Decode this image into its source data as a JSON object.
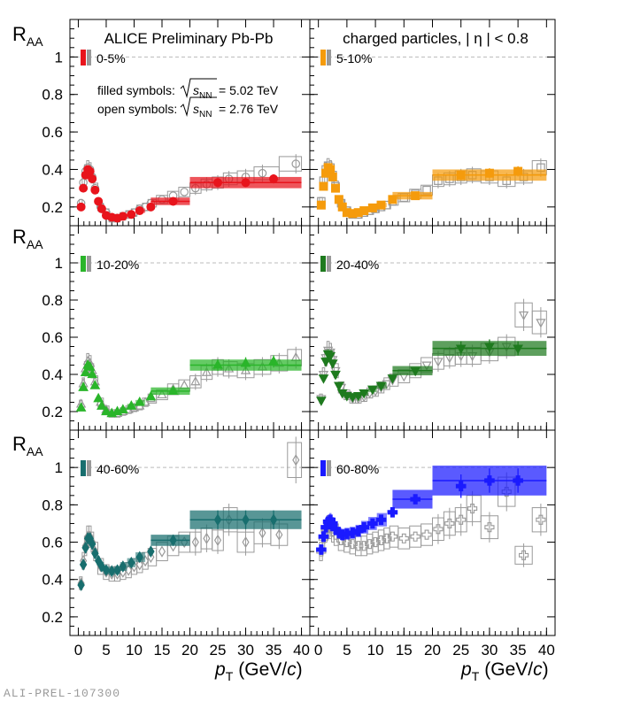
{
  "header": {
    "left_title": "ALICE Preliminary Pb-Pb",
    "right_title": "charged particles, | η | < 0.8"
  },
  "legend": {
    "filled_label": "filled symbols:",
    "open_label": "open symbols:",
    "sqrt_symbol": "s",
    "sqrt_sub": "NN",
    "energy_502": "= 5.02 TeV",
    "energy_276": "= 2.76 TeV"
  },
  "axes": {
    "y_label_main": "R",
    "y_label_sub": "AA",
    "x_label_main": "p",
    "x_label_sub": "T",
    "x_label_unit_open": "(GeV/",
    "x_label_unit_c": "c",
    "x_label_unit_close": ")",
    "x_ticks": [
      0,
      5,
      10,
      15,
      20,
      25,
      30,
      35,
      40
    ],
    "y_ticks": [
      0.2,
      0.4,
      0.6,
      0.8,
      1
    ]
  },
  "watermark": "ALI-PREL-107300",
  "chart_data": [
    {
      "type": "scatter",
      "panel": "top-left",
      "centrality": "0-5%",
      "color": "#e8141c",
      "marker": "circle",
      "xlim": [
        -1.5,
        41.5
      ],
      "ylim": [
        0.1,
        1.2
      ],
      "points_502": [
        [
          0.5,
          0.2
        ],
        [
          0.9,
          0.3
        ],
        [
          1.3,
          0.37
        ],
        [
          1.7,
          0.4
        ],
        [
          2.1,
          0.39
        ],
        [
          2.5,
          0.35
        ],
        [
          3,
          0.29
        ],
        [
          3.6,
          0.23
        ],
        [
          4.2,
          0.19
        ],
        [
          5,
          0.155
        ],
        [
          6,
          0.145
        ],
        [
          7,
          0.14
        ],
        [
          8,
          0.15
        ],
        [
          9.5,
          0.16
        ],
        [
          11,
          0.18
        ],
        [
          13,
          0.2
        ],
        [
          17,
          0.23
        ],
        [
          25,
          0.33
        ],
        [
          30,
          0.33
        ],
        [
          35,
          0.35
        ]
      ],
      "points_276": [
        [
          0.5,
          0.22
        ],
        [
          0.9,
          0.33
        ],
        [
          1.3,
          0.39
        ],
        [
          1.7,
          0.41
        ],
        [
          2.1,
          0.4
        ],
        [
          2.5,
          0.36
        ],
        [
          3,
          0.3
        ],
        [
          4,
          0.2
        ],
        [
          5,
          0.17
        ],
        [
          6,
          0.14
        ],
        [
          7,
          0.14
        ],
        [
          8,
          0.15
        ],
        [
          9,
          0.16
        ],
        [
          10,
          0.17
        ],
        [
          11,
          0.19
        ],
        [
          12,
          0.2
        ],
        [
          13,
          0.22
        ],
        [
          15,
          0.24
        ],
        [
          17,
          0.26
        ],
        [
          19,
          0.28
        ],
        [
          21,
          0.3
        ],
        [
          23,
          0.32
        ],
        [
          25,
          0.33
        ],
        [
          27,
          0.35
        ],
        [
          30,
          0.36
        ],
        [
          33,
          0.38
        ],
        [
          39,
          0.43
        ]
      ],
      "sys_boxes_502": [
        [
          13,
          20,
          0.23,
          0.02
        ],
        [
          20,
          40,
          0.33,
          0.03
        ]
      ]
    },
    {
      "type": "scatter",
      "panel": "top-right",
      "centrality": "5-10%",
      "color": "#f59b0c",
      "marker": "square",
      "xlim": [
        -1.5,
        41.5
      ],
      "ylim": [
        0.1,
        1.2
      ],
      "points_502": [
        [
          0.5,
          0.21
        ],
        [
          0.9,
          0.31
        ],
        [
          1.3,
          0.38
        ],
        [
          1.7,
          0.41
        ],
        [
          2.1,
          0.4
        ],
        [
          2.5,
          0.36
        ],
        [
          3,
          0.3
        ],
        [
          3.6,
          0.24
        ],
        [
          4.2,
          0.2
        ],
        [
          5,
          0.17
        ],
        [
          6,
          0.165
        ],
        [
          7,
          0.17
        ],
        [
          8,
          0.18
        ],
        [
          9.5,
          0.195
        ],
        [
          11,
          0.21
        ],
        [
          13,
          0.24
        ],
        [
          17,
          0.26
        ],
        [
          25,
          0.37
        ],
        [
          30,
          0.38
        ],
        [
          35,
          0.39
        ]
      ],
      "points_276": [
        [
          0.5,
          0.23
        ],
        [
          0.9,
          0.34
        ],
        [
          1.3,
          0.4
        ],
        [
          1.7,
          0.42
        ],
        [
          2.1,
          0.41
        ],
        [
          2.5,
          0.37
        ],
        [
          3,
          0.31
        ],
        [
          4,
          0.22
        ],
        [
          5,
          0.18
        ],
        [
          6,
          0.16
        ],
        [
          7,
          0.16
        ],
        [
          8,
          0.17
        ],
        [
          9,
          0.18
        ],
        [
          10,
          0.19
        ],
        [
          11,
          0.2
        ],
        [
          12,
          0.21
        ],
        [
          13,
          0.23
        ],
        [
          15,
          0.25
        ],
        [
          17,
          0.27
        ],
        [
          19,
          0.29
        ],
        [
          21,
          0.34
        ],
        [
          23,
          0.35
        ],
        [
          25,
          0.36
        ],
        [
          27,
          0.37
        ],
        [
          30,
          0.36
        ],
        [
          33,
          0.34
        ],
        [
          36,
          0.36
        ],
        [
          39,
          0.41
        ]
      ],
      "sys_boxes_502": [
        [
          13,
          20,
          0.26,
          0.02
        ],
        [
          20,
          40,
          0.37,
          0.03
        ]
      ]
    },
    {
      "type": "scatter",
      "panel": "middle-left",
      "centrality": "10-20%",
      "color": "#2ab52a",
      "marker": "triangle-up",
      "xlim": [
        -1.5,
        41.5
      ],
      "ylim": [
        0.1,
        1.2
      ],
      "points_502": [
        [
          0.5,
          0.22
        ],
        [
          0.9,
          0.33
        ],
        [
          1.3,
          0.41
        ],
        [
          1.7,
          0.45
        ],
        [
          2.1,
          0.44
        ],
        [
          2.5,
          0.4
        ],
        [
          3,
          0.34
        ],
        [
          3.6,
          0.27
        ],
        [
          4.2,
          0.23
        ],
        [
          5,
          0.2
        ],
        [
          6,
          0.19
        ],
        [
          7,
          0.2
        ],
        [
          8,
          0.21
        ],
        [
          9.5,
          0.23
        ],
        [
          11,
          0.25
        ],
        [
          13,
          0.28
        ],
        [
          17,
          0.31
        ],
        [
          25,
          0.45
        ],
        [
          30,
          0.46
        ],
        [
          35,
          0.47
        ]
      ],
      "points_276": [
        [
          0.5,
          0.24
        ],
        [
          0.9,
          0.35
        ],
        [
          1.3,
          0.43
        ],
        [
          1.7,
          0.47
        ],
        [
          2.1,
          0.46
        ],
        [
          2.5,
          0.42
        ],
        [
          3,
          0.36
        ],
        [
          4,
          0.25
        ],
        [
          5,
          0.21
        ],
        [
          6,
          0.19
        ],
        [
          7,
          0.19
        ],
        [
          8,
          0.2
        ],
        [
          9,
          0.21
        ],
        [
          10,
          0.22
        ],
        [
          11,
          0.23
        ],
        [
          12,
          0.25
        ],
        [
          13,
          0.27
        ],
        [
          15,
          0.29
        ],
        [
          17,
          0.32
        ],
        [
          19,
          0.34
        ],
        [
          21,
          0.36
        ],
        [
          23,
          0.41
        ],
        [
          25,
          0.44
        ],
        [
          27,
          0.43
        ],
        [
          30,
          0.42
        ],
        [
          33,
          0.44
        ],
        [
          36,
          0.46
        ],
        [
          39,
          0.49
        ]
      ],
      "sys_boxes_502": [
        [
          13,
          20,
          0.31,
          0.02
        ],
        [
          20,
          40,
          0.45,
          0.03
        ]
      ]
    },
    {
      "type": "scatter",
      "panel": "middle-right",
      "centrality": "20-40%",
      "color": "#1e7a1e",
      "marker": "triangle-down",
      "xlim": [
        -1.5,
        41.5
      ],
      "ylim": [
        0.1,
        1.2
      ],
      "points_502": [
        [
          0.5,
          0.26
        ],
        [
          0.9,
          0.38
        ],
        [
          1.3,
          0.47
        ],
        [
          1.7,
          0.51
        ],
        [
          2.1,
          0.5
        ],
        [
          2.5,
          0.46
        ],
        [
          3,
          0.4
        ],
        [
          3.6,
          0.34
        ],
        [
          4.2,
          0.3
        ],
        [
          5,
          0.285
        ],
        [
          6,
          0.28
        ],
        [
          7,
          0.285
        ],
        [
          8,
          0.3
        ],
        [
          9.5,
          0.32
        ],
        [
          11,
          0.34
        ],
        [
          13,
          0.38
        ],
        [
          17,
          0.42
        ],
        [
          25,
          0.54
        ],
        [
          30,
          0.55
        ],
        [
          35,
          0.54
        ]
      ],
      "points_276": [
        [
          0.5,
          0.27
        ],
        [
          0.9,
          0.4
        ],
        [
          1.3,
          0.49
        ],
        [
          1.7,
          0.53
        ],
        [
          2.1,
          0.52
        ],
        [
          2.5,
          0.48
        ],
        [
          3,
          0.42
        ],
        [
          4,
          0.33
        ],
        [
          5,
          0.29
        ],
        [
          6,
          0.27
        ],
        [
          7,
          0.27
        ],
        [
          8,
          0.28
        ],
        [
          9,
          0.3
        ],
        [
          10,
          0.31
        ],
        [
          11,
          0.33
        ],
        [
          12,
          0.35
        ],
        [
          13,
          0.37
        ],
        [
          15,
          0.39
        ],
        [
          17,
          0.42
        ],
        [
          19,
          0.45
        ],
        [
          21,
          0.47
        ],
        [
          23,
          0.49
        ],
        [
          25,
          0.5
        ],
        [
          27,
          0.5
        ],
        [
          30,
          0.52
        ],
        [
          33,
          0.55
        ],
        [
          36,
          0.72
        ],
        [
          39,
          0.68
        ]
      ],
      "sys_boxes_502": [
        [
          13,
          20,
          0.42,
          0.025
        ],
        [
          20,
          40,
          0.54,
          0.04
        ]
      ]
    },
    {
      "type": "scatter",
      "panel": "bottom-left",
      "centrality": "40-60%",
      "color": "#186e6e",
      "marker": "diamond",
      "xlim": [
        -1.5,
        41.5
      ],
      "ylim": [
        0.1,
        1.2
      ],
      "points_502": [
        [
          0.5,
          0.37
        ],
        [
          0.9,
          0.48
        ],
        [
          1.3,
          0.57
        ],
        [
          1.7,
          0.62
        ],
        [
          2.1,
          0.62
        ],
        [
          2.5,
          0.59
        ],
        [
          3,
          0.54
        ],
        [
          3.6,
          0.5
        ],
        [
          4.2,
          0.47
        ],
        [
          5,
          0.45
        ],
        [
          6,
          0.445
        ],
        [
          7,
          0.45
        ],
        [
          8,
          0.47
        ],
        [
          9.5,
          0.49
        ],
        [
          11,
          0.52
        ],
        [
          13,
          0.55
        ],
        [
          17,
          0.61
        ],
        [
          25,
          0.72
        ],
        [
          30,
          0.72
        ],
        [
          35,
          0.72
        ]
      ],
      "points_276": [
        [
          0.5,
          0.38
        ],
        [
          0.9,
          0.5
        ],
        [
          1.3,
          0.58
        ],
        [
          1.7,
          0.63
        ],
        [
          2.1,
          0.63
        ],
        [
          2.5,
          0.6
        ],
        [
          3,
          0.55
        ],
        [
          4,
          0.47
        ],
        [
          5,
          0.44
        ],
        [
          6,
          0.43
        ],
        [
          7,
          0.43
        ],
        [
          8,
          0.44
        ],
        [
          9,
          0.45
        ],
        [
          10,
          0.47
        ],
        [
          11,
          0.48
        ],
        [
          12,
          0.5
        ],
        [
          13,
          0.52
        ],
        [
          15,
          0.55
        ],
        [
          17,
          0.58
        ],
        [
          19,
          0.6
        ],
        [
          21,
          0.6
        ],
        [
          23,
          0.62
        ],
        [
          25,
          0.61
        ],
        [
          27,
          0.72
        ],
        [
          30,
          0.6
        ],
        [
          33,
          0.65
        ],
        [
          36,
          0.64
        ],
        [
          39,
          1.04
        ]
      ],
      "sys_boxes_502": [
        [
          13,
          20,
          0.61,
          0.03
        ],
        [
          20,
          40,
          0.72,
          0.05
        ]
      ]
    },
    {
      "type": "scatter",
      "panel": "bottom-right",
      "centrality": "60-80%",
      "color": "#1a1aff",
      "marker": "cross",
      "xlim": [
        -1.5,
        41.5
      ],
      "ylim": [
        0.1,
        1.2
      ],
      "points_502": [
        [
          0.5,
          0.56
        ],
        [
          0.9,
          0.63
        ],
        [
          1.3,
          0.68
        ],
        [
          1.7,
          0.71
        ],
        [
          2.1,
          0.72
        ],
        [
          2.5,
          0.7
        ],
        [
          3,
          0.67
        ],
        [
          3.6,
          0.65
        ],
        [
          4.2,
          0.64
        ],
        [
          5,
          0.645
        ],
        [
          6,
          0.65
        ],
        [
          7,
          0.66
        ],
        [
          8,
          0.68
        ],
        [
          9.5,
          0.7
        ],
        [
          11,
          0.72
        ],
        [
          13,
          0.76
        ],
        [
          17,
          0.83
        ],
        [
          25,
          0.9
        ],
        [
          30,
          0.93
        ],
        [
          35,
          0.93
        ]
      ],
      "points_276": [
        [
          0.5,
          0.55
        ],
        [
          0.9,
          0.62
        ],
        [
          1.3,
          0.66
        ],
        [
          1.7,
          0.68
        ],
        [
          2.1,
          0.68
        ],
        [
          2.5,
          0.66
        ],
        [
          3,
          0.64
        ],
        [
          4,
          0.61
        ],
        [
          5,
          0.6
        ],
        [
          6,
          0.59
        ],
        [
          7,
          0.58
        ],
        [
          8,
          0.58
        ],
        [
          9,
          0.59
        ],
        [
          10,
          0.6
        ],
        [
          11,
          0.61
        ],
        [
          12,
          0.62
        ],
        [
          13,
          0.63
        ],
        [
          15,
          0.62
        ],
        [
          17,
          0.63
        ],
        [
          19,
          0.64
        ],
        [
          21,
          0.67
        ],
        [
          23,
          0.7
        ],
        [
          25,
          0.72
        ],
        [
          27,
          0.78
        ],
        [
          30,
          0.68
        ],
        [
          33,
          0.87
        ],
        [
          36,
          0.53
        ],
        [
          39,
          0.72
        ]
      ],
      "sys_boxes_502": [
        [
          13,
          20,
          0.83,
          0.05
        ],
        [
          20,
          40,
          0.93,
          0.08
        ]
      ]
    }
  ]
}
